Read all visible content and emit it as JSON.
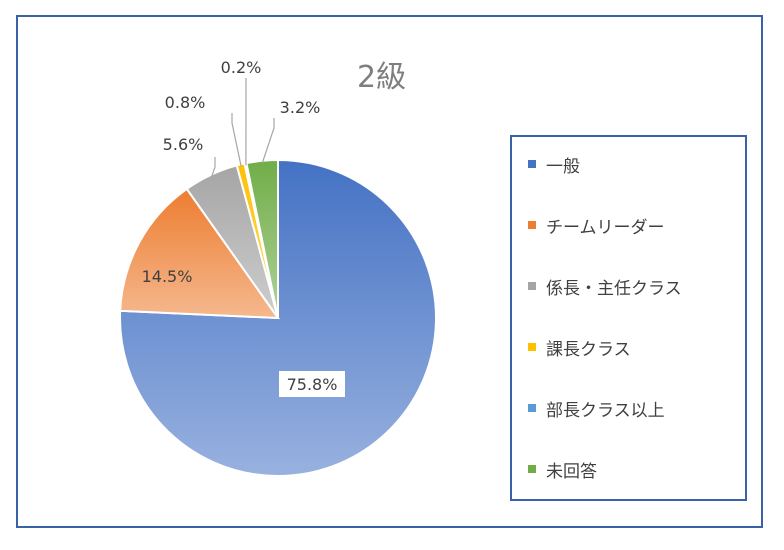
{
  "chart_data": {
    "type": "pie",
    "title": "2級",
    "legend_position": "right",
    "categories": [
      "一般",
      "チームリーダー",
      "係長・主任クラス",
      "課長クラス",
      "部長クラス以上",
      "未回答"
    ],
    "values": [
      75.8,
      14.5,
      5.6,
      0.8,
      0.2,
      3.2
    ],
    "labels": [
      "75.8%",
      "14.5%",
      "5.6%",
      "0.8%",
      "0.2%",
      "3.2%"
    ],
    "colors": [
      "#4472c4",
      "#ed7d31",
      "#a5a5a5",
      "#ffc000",
      "#5b9bd5",
      "#70ad47"
    ]
  }
}
